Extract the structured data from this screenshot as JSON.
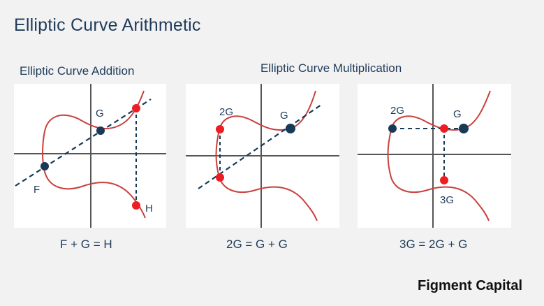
{
  "header": {
    "title": "Elliptic Curve Arithmetic"
  },
  "sections": {
    "addition": "Elliptic Curve Addition",
    "multiplication": "Elliptic Curve Multiplication"
  },
  "panels": [
    {
      "labels": {
        "G": "G",
        "F": "F",
        "H": "H"
      },
      "equation": "F + G = H"
    },
    {
      "labels": {
        "P2G": "2G",
        "G": "G"
      },
      "equation": "2G = G + G"
    },
    {
      "labels": {
        "P2G": "2G",
        "G": "G",
        "P3G": "3G"
      },
      "equation": "3G = 2G + G"
    }
  ],
  "colors": {
    "curve": "#c8413c",
    "red_point": "#ee1d24",
    "blue_point": "#173a57",
    "text": "#1f3b5a"
  },
  "footer": {
    "brand": "Figment Capital"
  }
}
